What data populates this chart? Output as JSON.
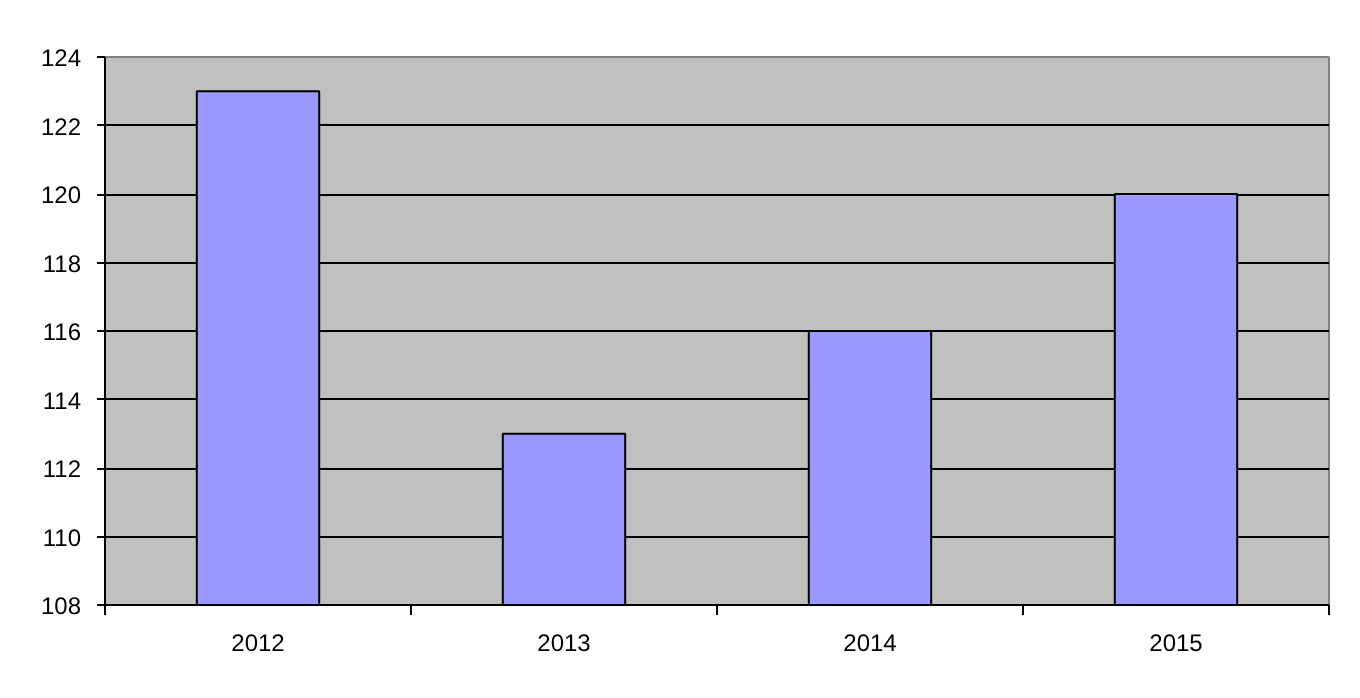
{
  "chart_data": {
    "type": "bar",
    "categories": [
      "2012",
      "2013",
      "2014",
      "2015"
    ],
    "values": [
      123,
      113,
      116,
      120
    ],
    "color": "#9999ff",
    "ylim": [
      108,
      124
    ],
    "yticks": [
      108,
      110,
      112,
      114,
      116,
      118,
      120,
      122,
      124
    ],
    "grid": "y"
  }
}
